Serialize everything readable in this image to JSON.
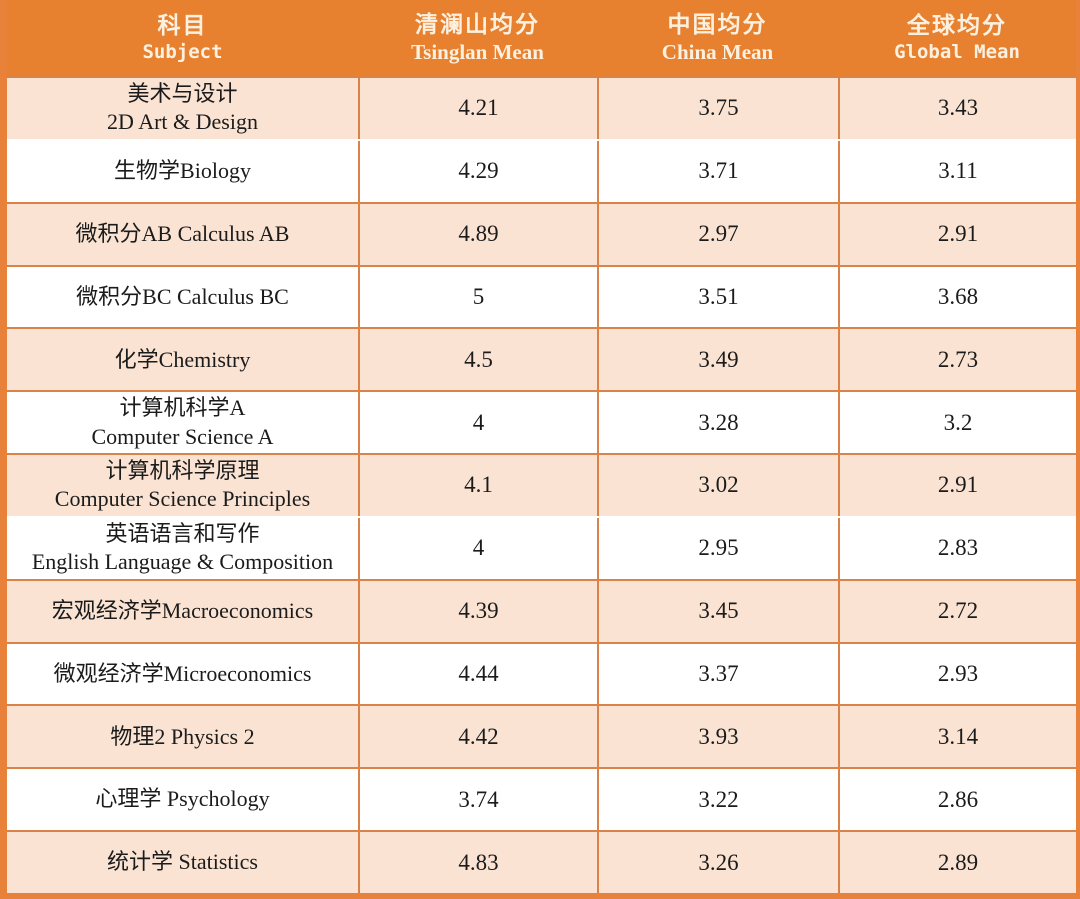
{
  "table": {
    "columns": [
      {
        "zh": "科目",
        "en": "Subject"
      },
      {
        "zh": "清澜山均分",
        "en": "Tsinglan Mean"
      },
      {
        "zh": "中国均分",
        "en": "China Mean"
      },
      {
        "zh": "全球均分",
        "en": "Global Mean"
      }
    ],
    "rows": [
      {
        "subject_lines": [
          "美术与设计",
          "2D Art & Design"
        ],
        "tsinglan": "4.21",
        "china": "3.75",
        "global": "3.43",
        "shaded": true,
        "divider_above": true
      },
      {
        "subject_lines": [
          "生物学Biology"
        ],
        "tsinglan": "4.29",
        "china": "3.71",
        "global": "3.11",
        "shaded": false,
        "divider_above": false
      },
      {
        "subject_lines": [
          "微积分AB Calculus AB"
        ],
        "tsinglan": "4.89",
        "china": "2.97",
        "global": "2.91",
        "shaded": true,
        "divider_above": true
      },
      {
        "subject_lines": [
          "微积分BC Calculus BC"
        ],
        "tsinglan": "5",
        "china": "3.51",
        "global": "3.68",
        "shaded": false,
        "divider_above": true
      },
      {
        "subject_lines": [
          "化学Chemistry"
        ],
        "tsinglan": "4.5",
        "china": "3.49",
        "global": "2.73",
        "shaded": true,
        "divider_above": true
      },
      {
        "subject_lines": [
          "计算机科学A",
          "Computer Science A"
        ],
        "tsinglan": "4",
        "china": "3.28",
        "global": "3.2",
        "shaded": false,
        "divider_above": true
      },
      {
        "subject_lines": [
          "计算机科学原理",
          "Computer Science Principles"
        ],
        "tsinglan": "4.1",
        "china": "3.02",
        "global": "2.91",
        "shaded": true,
        "divider_above": true
      },
      {
        "subject_lines": [
          "英语语言和写作",
          "English Language & Composition"
        ],
        "tsinglan": "4",
        "china": "2.95",
        "global": "2.83",
        "shaded": false,
        "divider_above": false
      },
      {
        "subject_lines": [
          "宏观经济学Macroeconomics"
        ],
        "tsinglan": "4.39",
        "china": "3.45",
        "global": "2.72",
        "shaded": true,
        "divider_above": true
      },
      {
        "subject_lines": [
          "微观经济学Microeconomics"
        ],
        "tsinglan": "4.44",
        "china": "3.37",
        "global": "2.93",
        "shaded": false,
        "divider_above": true
      },
      {
        "subject_lines": [
          "物理2 Physics 2"
        ],
        "tsinglan": "4.42",
        "china": "3.93",
        "global": "3.14",
        "shaded": true,
        "divider_above": true
      },
      {
        "subject_lines": [
          "心理学 Psychology"
        ],
        "tsinglan": "3.74",
        "china": "3.22",
        "global": "2.86",
        "shaded": false,
        "divider_above": true
      },
      {
        "subject_lines": [
          "统计学 Statistics"
        ],
        "tsinglan": "4.83",
        "china": "3.26",
        "global": "2.89",
        "shaded": true,
        "divider_above": true
      }
    ]
  },
  "colors": {
    "header_bg": "#e8812f",
    "header_text": "#fcf1e0",
    "row_shaded_bg": "#fae3d3",
    "row_plain_bg": "#ffffff",
    "grid_line": "#d98349",
    "frame": "#e8823a",
    "body_text": "#1b1b1b"
  },
  "chart_data": {
    "type": "table",
    "columns": [
      "科目 Subject",
      "清澜山均分 Tsinglan Mean",
      "中国均分 China Mean",
      "全球均分 Global Mean"
    ],
    "categories": [
      "美术与设计 2D Art & Design",
      "生物学 Biology",
      "微积分AB Calculus AB",
      "微积分BC Calculus BC",
      "化学 Chemistry",
      "计算机科学A Computer Science A",
      "计算机科学原理 Computer Science Principles",
      "英语语言和写作 English Language & Composition",
      "宏观经济学 Macroeconomics",
      "微观经济学 Microeconomics",
      "物理2 Physics 2",
      "心理学 Psychology",
      "统计学 Statistics"
    ],
    "series": [
      {
        "name": "Tsinglan Mean",
        "values": [
          4.21,
          4.29,
          4.89,
          5,
          4.5,
          4,
          4.1,
          4,
          4.39,
          4.44,
          4.42,
          3.74,
          4.83
        ]
      },
      {
        "name": "China Mean",
        "values": [
          3.75,
          3.71,
          2.97,
          3.51,
          3.49,
          3.28,
          3.02,
          2.95,
          3.45,
          3.37,
          3.93,
          3.22,
          3.26
        ]
      },
      {
        "name": "Global Mean",
        "values": [
          3.43,
          3.11,
          2.91,
          3.68,
          2.73,
          3.2,
          2.91,
          2.83,
          2.72,
          2.93,
          3.14,
          2.86,
          2.89
        ]
      }
    ]
  }
}
